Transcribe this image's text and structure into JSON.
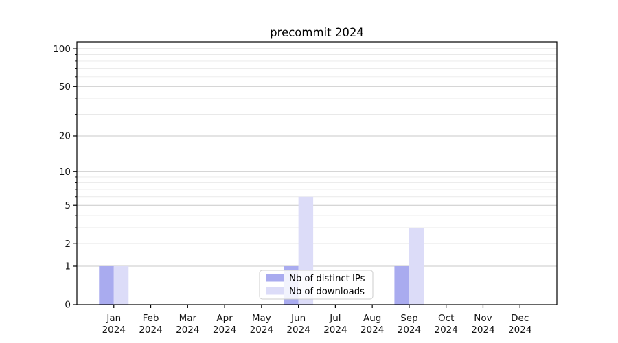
{
  "chart_data": {
    "type": "bar",
    "title": "precommit 2024",
    "categories": [
      {
        "month": "Jan",
        "year": "2024"
      },
      {
        "month": "Feb",
        "year": "2024"
      },
      {
        "month": "Mar",
        "year": "2024"
      },
      {
        "month": "Apr",
        "year": "2024"
      },
      {
        "month": "May",
        "year": "2024"
      },
      {
        "month": "Jun",
        "year": "2024"
      },
      {
        "month": "Jul",
        "year": "2024"
      },
      {
        "month": "Aug",
        "year": "2024"
      },
      {
        "month": "Sep",
        "year": "2024"
      },
      {
        "month": "Oct",
        "year": "2024"
      },
      {
        "month": "Nov",
        "year": "2024"
      },
      {
        "month": "Dec",
        "year": "2024"
      }
    ],
    "series": [
      {
        "name": "Nb of distinct IPs",
        "color": "#a9abef",
        "values": [
          1,
          0,
          0,
          0,
          0,
          1,
          0,
          0,
          1,
          0,
          0,
          0
        ]
      },
      {
        "name": "Nb of downloads",
        "color": "#dcdcf8",
        "values": [
          1,
          0,
          0,
          0,
          0,
          6,
          0,
          0,
          3,
          0,
          0,
          0
        ]
      }
    ],
    "xlabel": "",
    "ylabel": "",
    "y_axis": {
      "scale": "log1p",
      "major_ticks": [
        0,
        1,
        2,
        5,
        10,
        20,
        50,
        100
      ],
      "minor_ticks": [
        3,
        4,
        6,
        7,
        8,
        9,
        30,
        40,
        60,
        70,
        80,
        90
      ],
      "max": 113.4
    },
    "legend": {
      "position": "lower center"
    },
    "grid": true,
    "colors": {
      "major_grid": "#c9c9c9",
      "minor_grid": "#e9e9e9",
      "axis": "#000000",
      "text": "#141414",
      "legend_border": "#cccccc",
      "legend_bg": "#ffffff"
    }
  }
}
